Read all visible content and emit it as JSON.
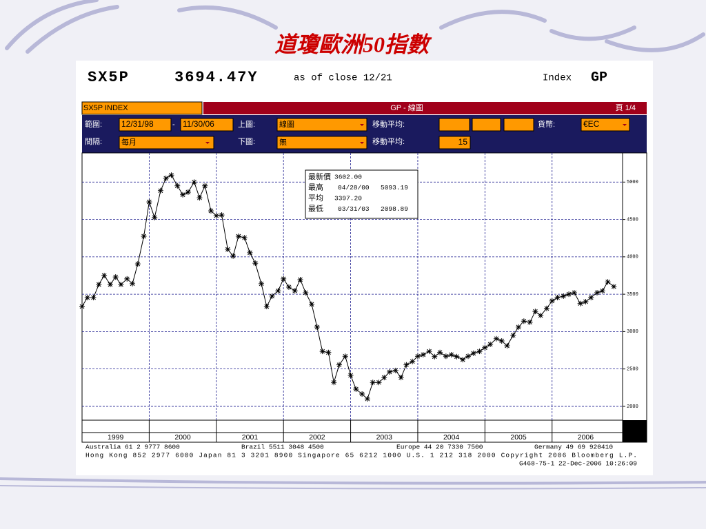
{
  "slide_title": "道瓊歐洲50指數",
  "header": {
    "ticker": "SX5P",
    "price": "3694.47Y",
    "asof": "as of close 12/21",
    "kind": "Index",
    "func": "GP"
  },
  "toolbar": {
    "security": "SX5P INDEX",
    "caption": "GP - 線圖",
    "page": "頁 1/4",
    "range_label": "範圍:",
    "range_from": "12/31/98",
    "range_sep": "-",
    "range_to": "11/30/06",
    "upper_label": "上圖:",
    "upper_value": "線圖",
    "ma_label_1": "移動平均:",
    "currency_label": "貨幣:",
    "currency": "€EC",
    "interval_label": "間隔:",
    "interval": "每月",
    "lower_label": "下圖:",
    "lower_value": "無",
    "ma_label_2": "移動平均:",
    "ma_value": "15"
  },
  "footer": {
    "line1": [
      "Australia 61 2 9777 8600",
      "Brazil 5511 3048 4500",
      "Europe 44 20 7330 7500",
      "Germany 49 69 920410"
    ],
    "line2": "Hong Kong 852 2977 6000 Japan 81 3 3201 8900 Singapore 65 6212 1000 U.S. 1 212 318 2000 Copyright 2006 Bloomberg L.P.",
    "line3": "G468-75-1 22-Dec-2006 10:26:09"
  },
  "chart_data": {
    "type": "line",
    "color": "#000000",
    "grid": true,
    "stats": [
      {
        "label": "最新價",
        "date": null,
        "value": "3602.00"
      },
      {
        "label": "最高",
        "date": "04/28/00",
        "value": "5093.19"
      },
      {
        "label": "平均",
        "date": null,
        "value": "3397.20"
      },
      {
        "label": "最低",
        "date": "03/31/03",
        "value": "2098.89"
      }
    ],
    "x": [
      1999.0,
      1999.08,
      1999.17,
      1999.25,
      1999.33,
      1999.42,
      1999.5,
      1999.58,
      1999.67,
      1999.75,
      1999.83,
      1999.92,
      2000.0,
      2000.08,
      2000.17,
      2000.25,
      2000.33,
      2000.42,
      2000.5,
      2000.58,
      2000.67,
      2000.75,
      2000.83,
      2000.92,
      2001.0,
      2001.08,
      2001.17,
      2001.25,
      2001.33,
      2001.42,
      2001.5,
      2001.58,
      2001.67,
      2001.75,
      2001.83,
      2001.92,
      2002.0,
      2002.08,
      2002.17,
      2002.25,
      2002.33,
      2002.42,
      2002.5,
      2002.58,
      2002.67,
      2002.75,
      2002.83,
      2002.92,
      2003.0,
      2003.08,
      2003.17,
      2003.25,
      2003.33,
      2003.42,
      2003.5,
      2003.58,
      2003.67,
      2003.75,
      2003.83,
      2003.92,
      2004.0,
      2004.08,
      2004.17,
      2004.25,
      2004.33,
      2004.42,
      2004.5,
      2004.58,
      2004.67,
      2004.75,
      2004.83,
      2004.92,
      2005.0,
      2005.08,
      2005.17,
      2005.25,
      2005.33,
      2005.42,
      2005.5,
      2005.58,
      2005.67,
      2005.75,
      2005.83,
      2005.92,
      2006.0,
      2006.08,
      2006.17,
      2006.25,
      2006.33,
      2006.42,
      2006.5,
      2006.58,
      2006.67,
      2006.75,
      2006.83,
      2006.92
    ],
    "values": [
      3335,
      3455,
      3455,
      3630,
      3750,
      3630,
      3730,
      3630,
      3705,
      3640,
      3905,
      4275,
      4735,
      4525,
      4885,
      5050,
      5093,
      4950,
      4830,
      4865,
      5000,
      4790,
      4950,
      4615,
      4550,
      4560,
      4100,
      4010,
      4275,
      4255,
      4055,
      3915,
      3640,
      3335,
      3475,
      3545,
      3705,
      3595,
      3545,
      3695,
      3520,
      3365,
      3060,
      2735,
      2720,
      2320,
      2555,
      2670,
      2415,
      2230,
      2165,
      2099,
      2320,
      2320,
      2385,
      2460,
      2480,
      2385,
      2555,
      2600,
      2670,
      2690,
      2735,
      2665,
      2720,
      2670,
      2690,
      2665,
      2625,
      2670,
      2710,
      2735,
      2785,
      2830,
      2905,
      2875,
      2810,
      2950,
      3060,
      3140,
      3125,
      3270,
      3215,
      3310,
      3410,
      3455,
      3475,
      3500,
      3520,
      3375,
      3400,
      3455,
      3520,
      3545,
      3665,
      3602
    ],
    "xlim": [
      1999,
      2007.05
    ],
    "xticks": [
      {
        "value": 1999.5,
        "label": "1999"
      },
      {
        "value": 2000.5,
        "label": "2000"
      },
      {
        "value": 2001.5,
        "label": "2001"
      },
      {
        "value": 2002.5,
        "label": "2002"
      },
      {
        "value": 2003.5,
        "label": "2003"
      },
      {
        "value": 2004.5,
        "label": "2004"
      },
      {
        "value": 2005.5,
        "label": "2005"
      },
      {
        "value": 2006.5,
        "label": "2006"
      }
    ],
    "ylim": [
      1815,
      5390
    ],
    "yticks": [
      2000,
      2500,
      3000,
      3500,
      4000,
      4500,
      5000
    ]
  }
}
